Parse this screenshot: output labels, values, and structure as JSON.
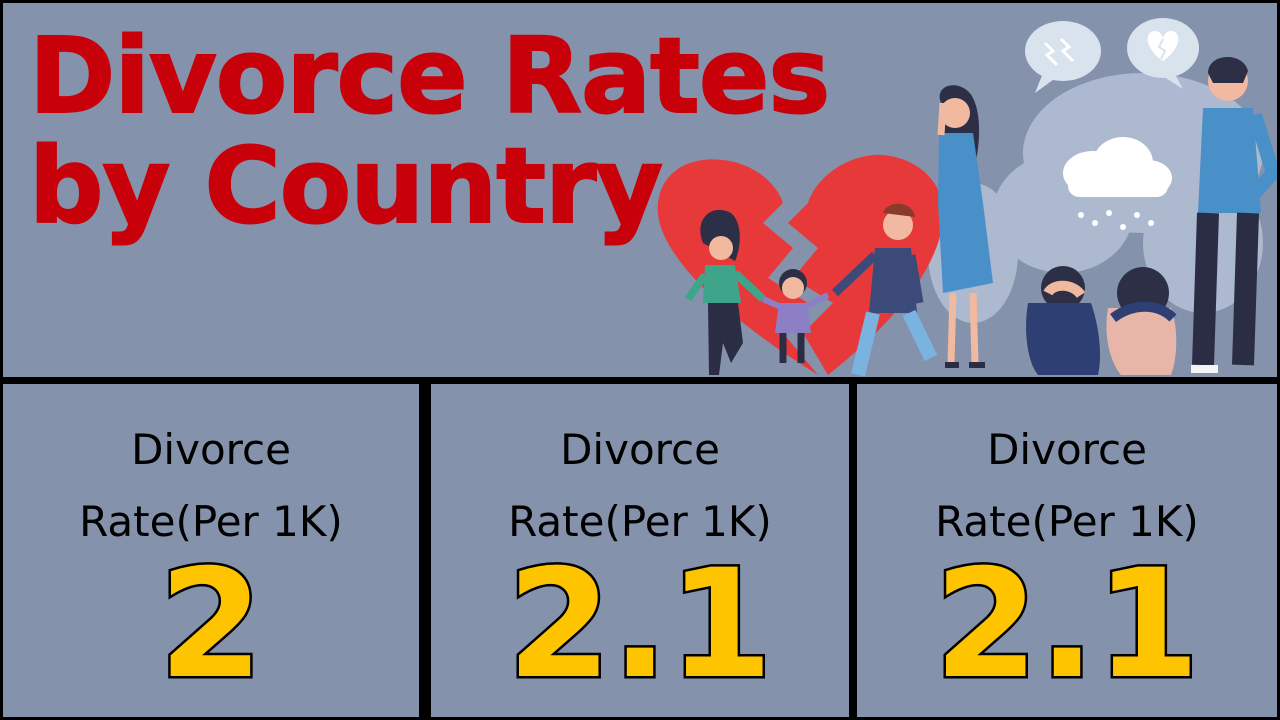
{
  "title": {
    "line1": "Divorce Rates",
    "line2": "by Country"
  },
  "panels": [
    {
      "label_line1": "Divorce",
      "label_line2": "Rate(Per 1K)",
      "value": "2"
    },
    {
      "label_line1": "Divorce",
      "label_line2": "Rate(Per 1K)",
      "value": "2.1"
    },
    {
      "label_line1": "Divorce",
      "label_line2": "Rate(Per 1K)",
      "value": "2.1"
    }
  ],
  "colors": {
    "background": "#8592ab",
    "title": "#c8000a",
    "value": "#ffc400",
    "divider": "#000000"
  },
  "illustration": {
    "icons": [
      "broken-heart-icon",
      "speech-bubble-lightning-icon",
      "speech-bubble-broken-heart-icon",
      "rain-cloud-icon"
    ]
  }
}
